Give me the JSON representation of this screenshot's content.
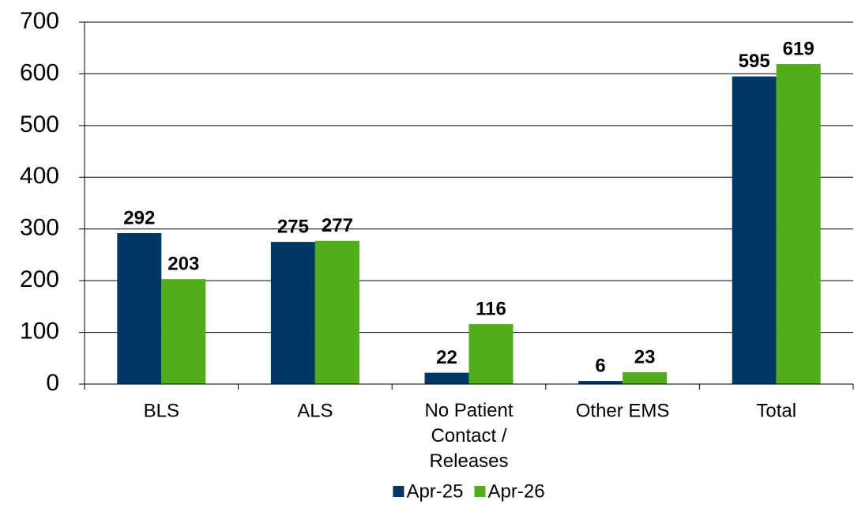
{
  "chart_data": {
    "type": "bar",
    "categories": [
      "BLS",
      "ALS",
      "No Patient Contact / Releases",
      "Other EMS",
      "Total"
    ],
    "series": [
      {
        "name": "Apr-25",
        "color": "#003865",
        "values": [
          292,
          275,
          22,
          6,
          595
        ]
      },
      {
        "name": "Apr-26",
        "color": "#52ae18",
        "values": [
          203,
          277,
          116,
          23,
          619
        ]
      }
    ],
    "ylim": [
      0,
      700
    ],
    "yticks": [
      0,
      100,
      200,
      300,
      400,
      500,
      600,
      700
    ],
    "grid": true,
    "legend": "bottom"
  }
}
